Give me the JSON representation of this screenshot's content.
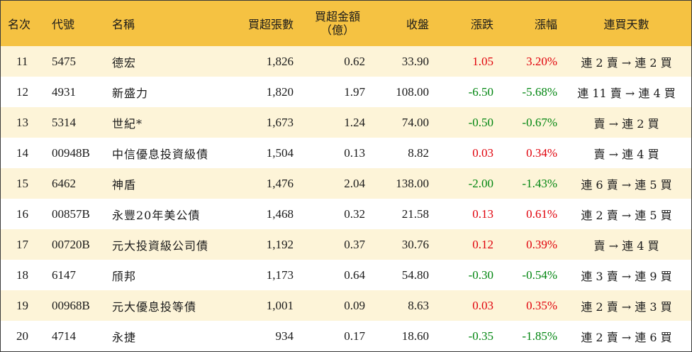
{
  "header": {
    "rank": "名次",
    "code": "代號",
    "name": "名稱",
    "net_lots": "買超張數",
    "net_amount_line1": "買超金額",
    "net_amount_line2": "（億）",
    "close": "收盤",
    "change": "漲跌",
    "pct": "漲幅",
    "streak": "連買天數"
  },
  "colors": {
    "header_bg": "#f5c242",
    "stripe_bg": "#fdf4d8",
    "up": "#e0000a",
    "down": "#00850f"
  },
  "rows": [
    {
      "rank": "11",
      "code": "5475",
      "name": "德宏",
      "lots": "1,826",
      "amount": "0.62",
      "close": "33.90",
      "change": "1.05",
      "pct": "3.20%",
      "dir": "up",
      "streak": "連 2 賣 → 連 2 買"
    },
    {
      "rank": "12",
      "code": "4931",
      "name": "新盛力",
      "lots": "1,820",
      "amount": "1.97",
      "close": "108.00",
      "change": "-6.50",
      "pct": "-5.68%",
      "dir": "down",
      "streak": "連 11 賣 → 連 4 買"
    },
    {
      "rank": "13",
      "code": "5314",
      "name": "世紀*",
      "lots": "1,673",
      "amount": "1.24",
      "close": "74.00",
      "change": "-0.50",
      "pct": "-0.67%",
      "dir": "down",
      "streak": "賣 → 連 2 買"
    },
    {
      "rank": "14",
      "code": "00948B",
      "name": "中信優息投資級債",
      "lots": "1,504",
      "amount": "0.13",
      "close": "8.82",
      "change": "0.03",
      "pct": "0.34%",
      "dir": "up",
      "streak": "賣 → 連 4 買"
    },
    {
      "rank": "15",
      "code": "6462",
      "name": "神盾",
      "lots": "1,476",
      "amount": "2.04",
      "close": "138.00",
      "change": "-2.00",
      "pct": "-1.43%",
      "dir": "down",
      "streak": "連 6 賣 → 連 5 買"
    },
    {
      "rank": "16",
      "code": "00857B",
      "name": "永豐20年美公債",
      "lots": "1,468",
      "amount": "0.32",
      "close": "21.58",
      "change": "0.13",
      "pct": "0.61%",
      "dir": "up",
      "streak": "連 2 賣 → 連 5 買"
    },
    {
      "rank": "17",
      "code": "00720B",
      "name": "元大投資級公司債",
      "lots": "1,192",
      "amount": "0.37",
      "close": "30.76",
      "change": "0.12",
      "pct": "0.39%",
      "dir": "up",
      "streak": "賣 → 連 4 買"
    },
    {
      "rank": "18",
      "code": "6147",
      "name": "頎邦",
      "lots": "1,173",
      "amount": "0.64",
      "close": "54.80",
      "change": "-0.30",
      "pct": "-0.54%",
      "dir": "down",
      "streak": "連 3 賣 → 連 9 買"
    },
    {
      "rank": "19",
      "code": "00968B",
      "name": "元大優息投等債",
      "lots": "1,001",
      "amount": "0.09",
      "close": "8.63",
      "change": "0.03",
      "pct": "0.35%",
      "dir": "up",
      "streak": "連 2 賣 → 連 3 買"
    },
    {
      "rank": "20",
      "code": "4714",
      "name": "永捷",
      "lots": "934",
      "amount": "0.17",
      "close": "18.60",
      "change": "-0.35",
      "pct": "-1.85%",
      "dir": "down",
      "streak": "連 2 賣 → 連 6 買"
    }
  ]
}
